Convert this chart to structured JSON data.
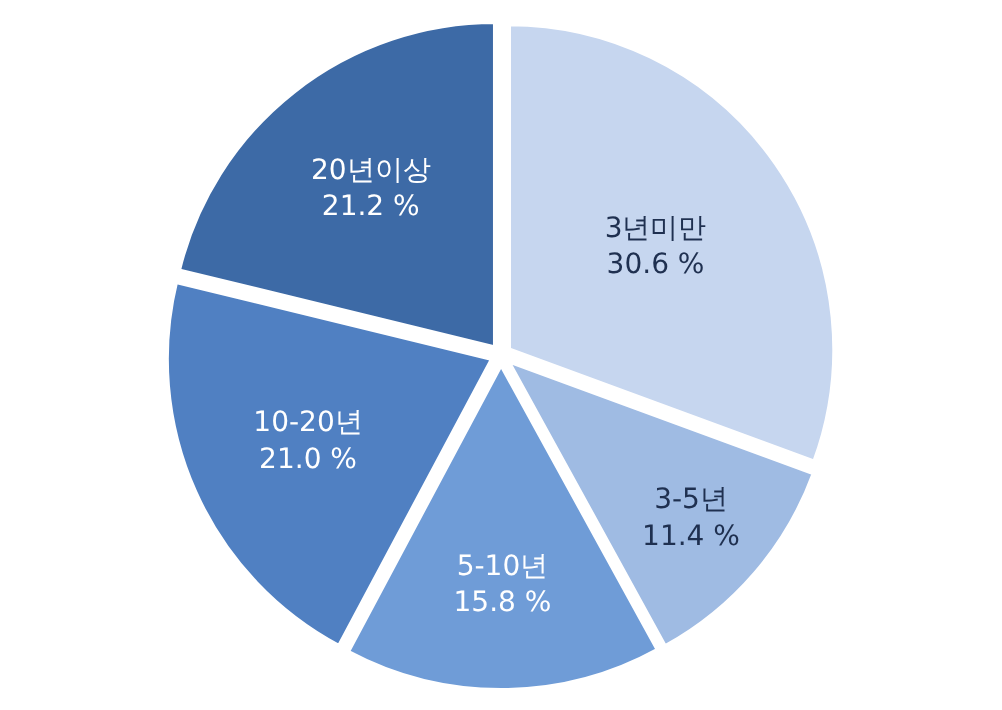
{
  "chart_data": {
    "type": "pie",
    "categories": [
      "3년미만",
      "3-5년",
      "5-10년",
      "10-20년",
      "20년이상"
    ],
    "values": [
      30.6,
      11.4,
      15.8,
      21.0,
      21.2
    ],
    "value_labels": [
      "30.6 %",
      "11.4 %",
      "15.8 %",
      "21.0 %",
      "21.2 %"
    ],
    "colors": [
      "#c6d6ef",
      "#9fbbe3",
      "#6f9cd7",
      "#5080c2",
      "#3d6aa6"
    ],
    "legend": false
  }
}
